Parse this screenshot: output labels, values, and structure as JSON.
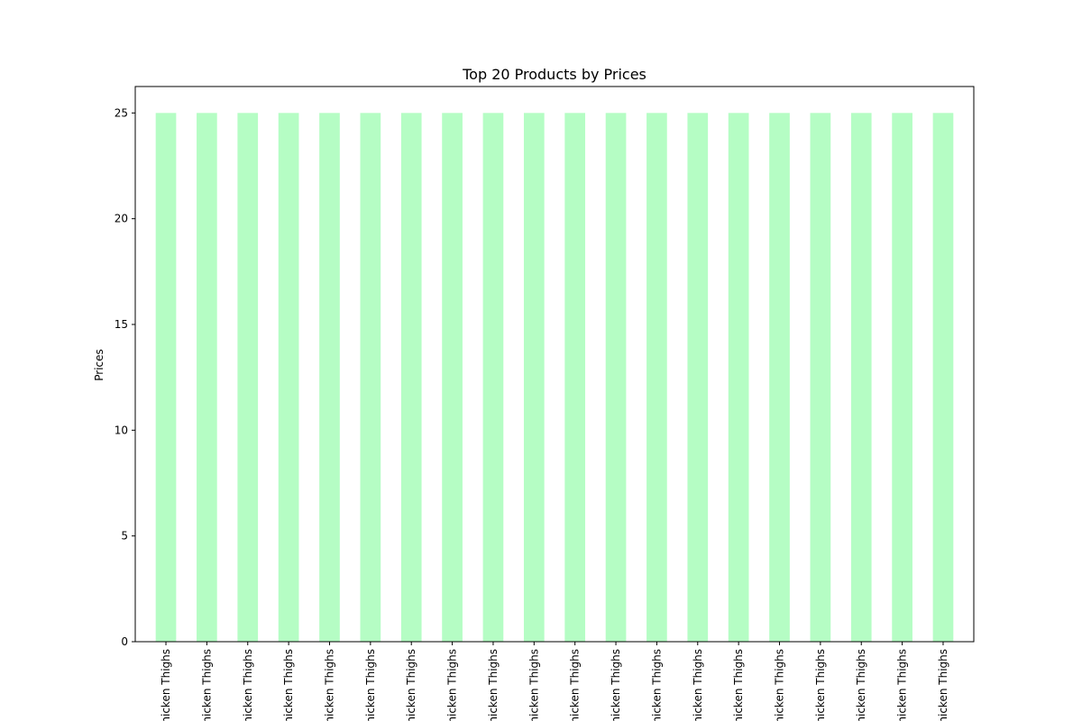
{
  "chart_data": {
    "type": "bar",
    "title": "Top 20 Products by Prices",
    "xlabel": "",
    "ylabel": "Prices",
    "ylim": [
      0,
      26.25
    ],
    "yticks": [
      "0",
      "5",
      "10",
      "15",
      "20",
      "25"
    ],
    "categories": [
      "Chicken Thighs",
      "Chicken Thighs",
      "Chicken Thighs",
      "Chicken Thighs",
      "Chicken Thighs",
      "Chicken Thighs",
      "Chicken Thighs",
      "Chicken Thighs",
      "Chicken Thighs",
      "Chicken Thighs",
      "Chicken Thighs",
      "Chicken Thighs",
      "Chicken Thighs",
      "Chicken Thighs",
      "Chicken Thighs",
      "Chicken Thighs",
      "Chicken Thighs",
      "Chicken Thighs",
      "Chicken Thighs",
      "Chicken Thighs"
    ],
    "values": [
      25,
      25,
      25,
      25,
      25,
      25,
      25,
      25,
      25,
      25,
      25,
      25,
      25,
      25,
      25,
      25,
      25,
      25,
      25,
      25
    ],
    "bar_color": "#b5fdc4",
    "grid": false,
    "legend": "none"
  }
}
